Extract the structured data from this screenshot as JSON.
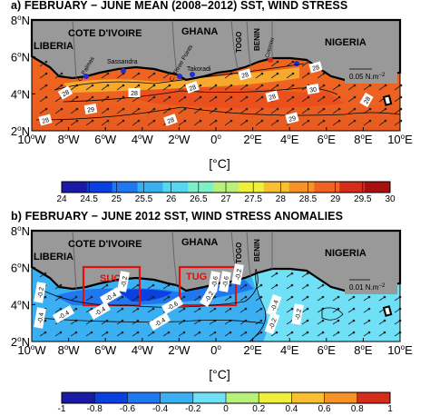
{
  "panel_a": {
    "title": "a) FEBRUARY − JUNE MEAN (2008−2012) SST, WIND STRESS",
    "countries": [
      "LIBERIA",
      "COTE D'IVOIRE",
      "GHANA",
      "TOGO",
      "BENIN",
      "NIGERIA"
    ],
    "places": [
      "C. Palmas",
      "Sassandra",
      "C. Three Points",
      "Takoradi",
      "Cotonou"
    ],
    "contour_labels": [
      "28",
      "29",
      "28",
      "28",
      "28",
      "28",
      "28",
      "28",
      "29",
      "30",
      "28",
      "28"
    ],
    "wind_scale": "0.05 N.m",
    "wind_scale_exp": "−2",
    "unit": "[°C]",
    "colorbar_ticks": [
      "24",
      "24.5",
      "25",
      "25.5",
      "26",
      "26.5",
      "27",
      "27.5",
      "28",
      "28.5",
      "29",
      "29.5",
      "30"
    ],
    "colorbar_colors": [
      "#1a1aa6",
      "#0a3fe0",
      "#1f78f0",
      "#3ab0f2",
      "#54d8f2",
      "#7ef0c8",
      "#b8f07a",
      "#eef03a",
      "#f8c030",
      "#f79226",
      "#ef6421",
      "#d62d1a",
      "#a80f0f"
    ]
  },
  "panel_b": {
    "title": "b) FEBRUARY − JUNE 2012 SST, WIND STRESS ANOMALIES",
    "countries": [
      "LIBERIA",
      "COTE D'IVOIRE",
      "GHANA",
      "TOGO",
      "BENIN",
      "NIGERIA"
    ],
    "boxes": [
      "SUC",
      "TUG"
    ],
    "contour_labels": [
      "-0.2",
      "-0.4",
      "-0.4",
      "-0.4",
      "-0.4",
      "-0.2",
      "-0.4",
      "-0.6",
      "-0.2",
      "-0.6",
      "-0.6",
      "-0.2",
      "-0.4",
      "-0.2",
      "-0.2"
    ],
    "wind_scale": "0.01 N.m",
    "wind_scale_exp": "−2",
    "unit": "[°C]",
    "colorbar_ticks": [
      "-1",
      "-0.8",
      "-0.6",
      "-0.4",
      "-0.2",
      "0",
      "0.2",
      "0.4",
      "0.6",
      "0.8",
      "1"
    ],
    "colorbar_colors": [
      "#1a1aa6",
      "#0a3fe0",
      "#1f78f0",
      "#3ab0f2",
      "#6fe0f5",
      "#b8f07a",
      "#eef03a",
      "#f8c030",
      "#f79226",
      "#d62d1a"
    ]
  },
  "map_axes": {
    "x_ticks": [
      "10",
      "8",
      "6",
      "4",
      "2",
      "0",
      "2",
      "4",
      "6",
      "8",
      "10"
    ],
    "x_dirs": [
      "W",
      "W",
      "W",
      "W",
      "W",
      "",
      "E",
      "E",
      "E",
      "E",
      "E"
    ],
    "y_ticks": [
      "8",
      "6",
      "4",
      "2"
    ],
    "y_dir": "N",
    "degree_sign": "o"
  }
}
